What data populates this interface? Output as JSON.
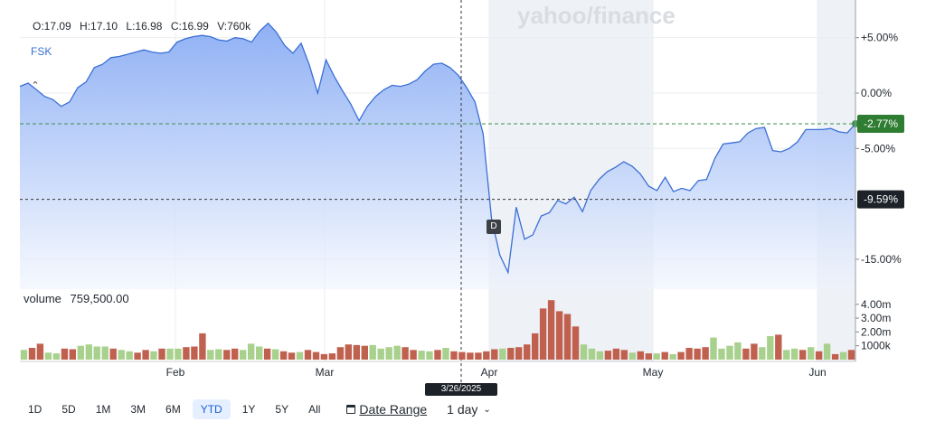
{
  "watermark": "yahoo/finance",
  "ohlc": {
    "open": "O:17.09",
    "high": "H:17.10",
    "low": "L:16.98",
    "close": "C:16.99",
    "volume": "V:760k"
  },
  "symbol": "FSK",
  "volume_label": {
    "title": "volume",
    "value": "759,500.00"
  },
  "crosshair_date": "3/26/2025",
  "event_marker": "D",
  "toolbar": {
    "ranges": [
      "1D",
      "5D",
      "1M",
      "3M",
      "6M",
      "YTD",
      "1Y",
      "5Y",
      "All"
    ],
    "active_range": "YTD",
    "date_range_label": "Date Range",
    "interval_label": "1 day"
  },
  "colors": {
    "line": "#3b6fd6",
    "up_volume": "#a9d18e",
    "down_volume": "#c0614f",
    "last_badge": "#2e7d32",
    "crosshair_badge": "#1d2228"
  },
  "chart_data": {
    "type": "area",
    "y_unit": "%",
    "y_ticks": [
      "+5.00%",
      "0.00%",
      "-5.00%",
      "-15.00%"
    ],
    "y_tick_values": [
      5,
      0,
      -5,
      -15
    ],
    "ylim": [
      -17.7,
      8.4
    ],
    "x_ticks": [
      "Feb",
      "Mar",
      "Apr",
      "May",
      "Jun"
    ],
    "last_value_label": "-2.77%",
    "crosshair_value_label": "-9.59%",
    "last_value": -2.77,
    "crosshair_value": -9.59,
    "percent_change": [
      0.6,
      0.9,
      0.3,
      -0.3,
      -0.6,
      -1.2,
      -0.8,
      0.5,
      1.0,
      2.3,
      2.6,
      3.2,
      3.3,
      3.5,
      3.7,
      3.9,
      3.7,
      3.6,
      3.7,
      4.6,
      4.9,
      5.1,
      5.2,
      5.1,
      4.8,
      4.7,
      5.0,
      4.9,
      4.6,
      5.6,
      6.3,
      5.5,
      4.3,
      3.6,
      4.5,
      2.5,
      0.0,
      3.0,
      1.5,
      0.2,
      -1.0,
      -2.5,
      -1.2,
      -0.3,
      0.3,
      0.7,
      0.6,
      0.8,
      1.2,
      2.0,
      2.6,
      2.7,
      2.3,
      1.6,
      0.5,
      -0.8,
      -3.7,
      -11.3,
      -14.6,
      -16.2,
      -10.3,
      -13.2,
      -12.8,
      -11.1,
      -10.8,
      -9.7,
      -10.0,
      -9.4,
      -10.7,
      -8.8,
      -7.8,
      -7.1,
      -6.7,
      -6.2,
      -6.6,
      -7.3,
      -8.4,
      -8.8,
      -7.6,
      -8.9,
      -8.6,
      -8.8,
      -7.9,
      -7.8,
      -5.9,
      -4.6,
      -4.5,
      -4.4,
      -3.6,
      -3.2,
      -3.1,
      -5.2,
      -5.3,
      -5.0,
      -4.4,
      -3.3,
      -3.3,
      -3.3,
      -3.2,
      -3.5,
      -3.6,
      -2.77
    ],
    "volume_series": {
      "name": "volume",
      "ticks": [
        "4.00m",
        "3.00m",
        "2.00m",
        "1000k"
      ],
      "tick_values": [
        4000000,
        3000000,
        2000000,
        1000000
      ],
      "ylim": [
        0,
        4900000
      ],
      "values": [
        700000,
        850000,
        1150000,
        500000,
        450000,
        800000,
        750000,
        1000000,
        1100000,
        950000,
        950000,
        800000,
        700000,
        600000,
        500000,
        700000,
        600000,
        800000,
        800000,
        800000,
        900000,
        950000,
        1900000,
        700000,
        750000,
        700000,
        800000,
        700000,
        1150000,
        950000,
        800000,
        750000,
        600000,
        500000,
        550000,
        700000,
        550000,
        400000,
        450000,
        900000,
        1100000,
        1050000,
        1000000,
        1050000,
        800000,
        900000,
        1000000,
        900000,
        700000,
        650000,
        600000,
        700000,
        850000,
        600000,
        550000,
        500000,
        500000,
        600000,
        750000,
        800000,
        850000,
        900000,
        1100000,
        1900000,
        3700000,
        4300000,
        3500000,
        3300000,
        2400000,
        1100000,
        800000,
        600000,
        650000,
        800000,
        700000,
        500000,
        600000,
        450000,
        450000,
        550000,
        400000,
        550000,
        850000,
        800000,
        900000,
        1600000,
        800000,
        1000000,
        1250000,
        800000,
        1150000,
        900000,
        1700000,
        1800000,
        700000,
        800000,
        700000,
        900000,
        600000,
        1150000,
        400000,
        550000,
        700000
      ],
      "up": [
        true,
        false,
        false,
        true,
        true,
        false,
        false,
        true,
        true,
        true,
        true,
        false,
        true,
        true,
        false,
        false,
        true,
        false,
        true,
        true,
        false,
        false,
        false,
        true,
        true,
        false,
        false,
        true,
        true,
        true,
        false,
        true,
        false,
        false,
        true,
        false,
        false,
        false,
        false,
        false,
        false,
        false,
        false,
        true,
        true,
        true,
        true,
        false,
        false,
        true,
        true,
        false,
        true,
        false,
        false,
        false,
        false,
        false,
        false,
        true,
        false,
        false,
        false,
        false,
        false,
        false,
        false,
        false,
        false,
        true,
        true,
        true,
        false,
        false,
        false,
        true,
        false,
        false,
        true,
        false,
        true,
        false,
        false,
        false,
        false,
        true,
        true,
        true,
        true,
        false,
        false,
        true,
        true,
        false,
        true,
        true,
        false,
        true,
        false,
        true,
        false,
        true
      ]
    }
  }
}
